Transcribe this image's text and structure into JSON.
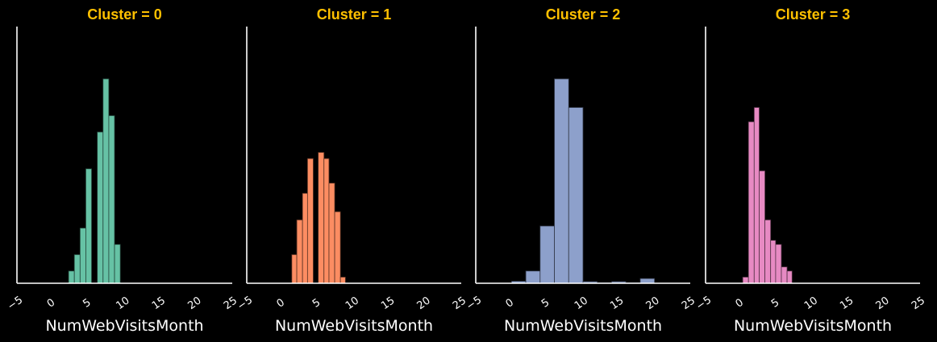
{
  "figure": {
    "background": "#000000",
    "title_color": "#FFC000",
    "axis_color": "#FFFFFF",
    "text_color": "#FFFFFF"
  },
  "chart_data": [
    {
      "type": "bar",
      "title": "Cluster = 0",
      "xlabel": "NumWebVisitsMonth",
      "ylabel": "",
      "xlim": [
        -5,
        25
      ],
      "xticks": [
        "-5",
        "0",
        "5",
        "10",
        "15",
        "20",
        "25"
      ],
      "ylim": [
        0,
        100
      ],
      "grid": false,
      "color": "#66C2A5",
      "bars": [
        {
          "x0": 2.2,
          "x1": 3.0,
          "value": 6
        },
        {
          "x0": 3.0,
          "x1": 3.8,
          "value": 14
        },
        {
          "x0": 3.8,
          "x1": 4.6,
          "value": 27
        },
        {
          "x0": 4.6,
          "x1": 5.4,
          "value": 56
        },
        {
          "x0": 6.2,
          "x1": 7.0,
          "value": 74
        },
        {
          "x0": 7.0,
          "x1": 7.8,
          "value": 100
        },
        {
          "x0": 7.8,
          "x1": 8.6,
          "value": 82
        },
        {
          "x0": 8.6,
          "x1": 9.4,
          "value": 19
        }
      ]
    },
    {
      "type": "bar",
      "title": "Cluster = 1",
      "xlabel": "NumWebVisitsMonth",
      "ylabel": "",
      "xlim": [
        -5,
        25
      ],
      "xticks": [
        "-5",
        "0",
        "5",
        "10",
        "15",
        "20",
        "25"
      ],
      "ylim": [
        0,
        100
      ],
      "grid": false,
      "color": "#FC8D62",
      "bars": [
        {
          "x0": 1.3,
          "x1": 2.0,
          "value": 14
        },
        {
          "x0": 2.0,
          "x1": 2.8,
          "value": 31
        },
        {
          "x0": 2.8,
          "x1": 3.5,
          "value": 44
        },
        {
          "x0": 3.5,
          "x1": 4.3,
          "value": 61
        },
        {
          "x0": 5.0,
          "x1": 5.8,
          "value": 64
        },
        {
          "x0": 5.8,
          "x1": 6.5,
          "value": 61
        },
        {
          "x0": 6.5,
          "x1": 7.3,
          "value": 49
        },
        {
          "x0": 7.3,
          "x1": 8.1,
          "value": 35
        },
        {
          "x0": 8.1,
          "x1": 8.8,
          "value": 3
        }
      ]
    },
    {
      "type": "bar",
      "title": "Cluster = 2",
      "xlabel": "NumWebVisitsMonth",
      "ylabel": "",
      "xlim": [
        -5,
        25
      ],
      "xticks": [
        "-5",
        "0",
        "5",
        "10",
        "15",
        "20",
        "25"
      ],
      "ylim": [
        0,
        100
      ],
      "grid": false,
      "color": "#8DA0CB",
      "bars": [
        {
          "x0": 0.0,
          "x1": 2.0,
          "value": 1
        },
        {
          "x0": 2.0,
          "x1": 4.0,
          "value": 6
        },
        {
          "x0": 4.0,
          "x1": 6.0,
          "value": 28
        },
        {
          "x0": 6.0,
          "x1": 8.0,
          "value": 100
        },
        {
          "x0": 8.0,
          "x1": 10.0,
          "value": 86
        },
        {
          "x0": 10.0,
          "x1": 12.0,
          "value": 0.8
        },
        {
          "x0": 12.0,
          "x1": 14.0,
          "value": 0.3
        },
        {
          "x0": 14.0,
          "x1": 16.0,
          "value": 0.8
        },
        {
          "x0": 16.0,
          "x1": 18.0,
          "value": 0.3
        },
        {
          "x0": 18.0,
          "x1": 20.0,
          "value": 2.3
        }
      ]
    },
    {
      "type": "bar",
      "title": "Cluster = 3",
      "xlabel": "NumWebVisitsMonth",
      "ylabel": "",
      "xlim": [
        -5,
        25
      ],
      "xticks": [
        "-5",
        "0",
        "5",
        "10",
        "15",
        "20",
        "25"
      ],
      "ylim": [
        0,
        100
      ],
      "grid": false,
      "color": "#E78AC3",
      "bars": [
        {
          "x0": 0.2,
          "x1": 1.0,
          "value": 3
        },
        {
          "x0": 1.0,
          "x1": 1.8,
          "value": 79
        },
        {
          "x0": 1.8,
          "x1": 2.5,
          "value": 86
        },
        {
          "x0": 2.5,
          "x1": 3.3,
          "value": 55
        },
        {
          "x0": 3.3,
          "x1": 4.1,
          "value": 31
        },
        {
          "x0": 4.1,
          "x1": 4.8,
          "value": 21
        },
        {
          "x0": 4.8,
          "x1": 5.6,
          "value": 19
        },
        {
          "x0": 5.6,
          "x1": 6.4,
          "value": 8
        },
        {
          "x0": 6.4,
          "x1": 7.1,
          "value": 6
        }
      ]
    }
  ]
}
